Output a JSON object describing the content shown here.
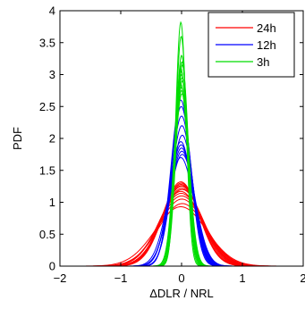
{
  "chart_data": {
    "type": "line",
    "xlabel": "ΔDLR / NRL",
    "ylabel": "PDF",
    "xlim": [
      -2,
      2
    ],
    "ylim": [
      0,
      4
    ],
    "xticks": [
      -2,
      -1,
      0,
      1,
      2
    ],
    "yticks": [
      0,
      0.5,
      1,
      1.5,
      2,
      2.5,
      3,
      3.5,
      4
    ],
    "xtick_labels": [
      "−2",
      "−1",
      "0",
      "1",
      "2"
    ],
    "ytick_labels": [
      "0",
      "0.5",
      "1",
      "1.5",
      "2",
      "2.5",
      "3",
      "3.5",
      "4"
    ],
    "grid": false,
    "legend_position": "top-right",
    "series": [
      {
        "name": "24h",
        "color": "#ff0000",
        "peaks": [
          1.32,
          1.28,
          1.25,
          1.22,
          1.2,
          1.17,
          1.14,
          1.1,
          1.05,
          0.98,
          0.93,
          1.3,
          1.26
        ],
        "widths": [
          0.3,
          0.31,
          0.32,
          0.33,
          0.34,
          0.35,
          0.36,
          0.37,
          0.38,
          0.39,
          0.42,
          0.3,
          0.32
        ],
        "center": 0.0
      },
      {
        "name": "12h",
        "color": "#0000ff",
        "peaks": [
          2.6,
          2.5,
          2.35,
          2.2,
          2.05,
          1.95,
          1.9,
          1.85,
          1.8,
          1.75,
          1.7
        ],
        "widths": [
          0.16,
          0.165,
          0.17,
          0.175,
          0.18,
          0.19,
          0.195,
          0.2,
          0.205,
          0.21,
          0.215
        ],
        "center": 0.0
      },
      {
        "name": "3h",
        "color": "#00dd00",
        "peaks": [
          3.82,
          3.6,
          3.3,
          3.2,
          3.15,
          3.1,
          3.05,
          3.0,
          2.95,
          2.9,
          2.85,
          2.8,
          2.75,
          2.7
        ],
        "widths": [
          0.085,
          0.09,
          0.095,
          0.1,
          0.1,
          0.102,
          0.104,
          0.106,
          0.108,
          0.11,
          0.112,
          0.114,
          0.116,
          0.118
        ],
        "center": 0.0
      }
    ]
  }
}
